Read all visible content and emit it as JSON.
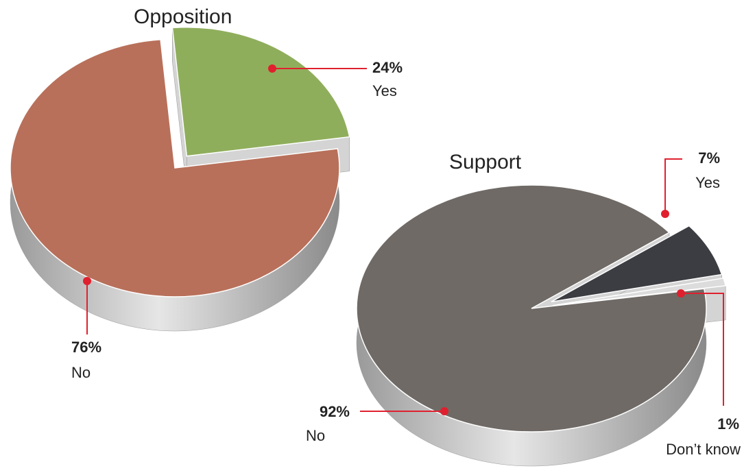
{
  "chart_data": [
    {
      "type": "pie",
      "title": "Opposition",
      "categories": [
        "Yes",
        "No"
      ],
      "values": [
        24,
        76
      ],
      "value_labels": [
        "24%",
        "76%"
      ],
      "colors": [
        "#8fae5c",
        "#b8705a"
      ]
    },
    {
      "type": "pie",
      "title": "Support",
      "categories": [
        "Yes",
        "Don’t know",
        "No"
      ],
      "values": [
        7,
        1,
        92
      ],
      "value_labels": [
        "7%",
        "1%",
        "92%"
      ],
      "colors": [
        "#3c3d42",
        "#dcdcdc",
        "#6f6a66"
      ]
    }
  ]
}
